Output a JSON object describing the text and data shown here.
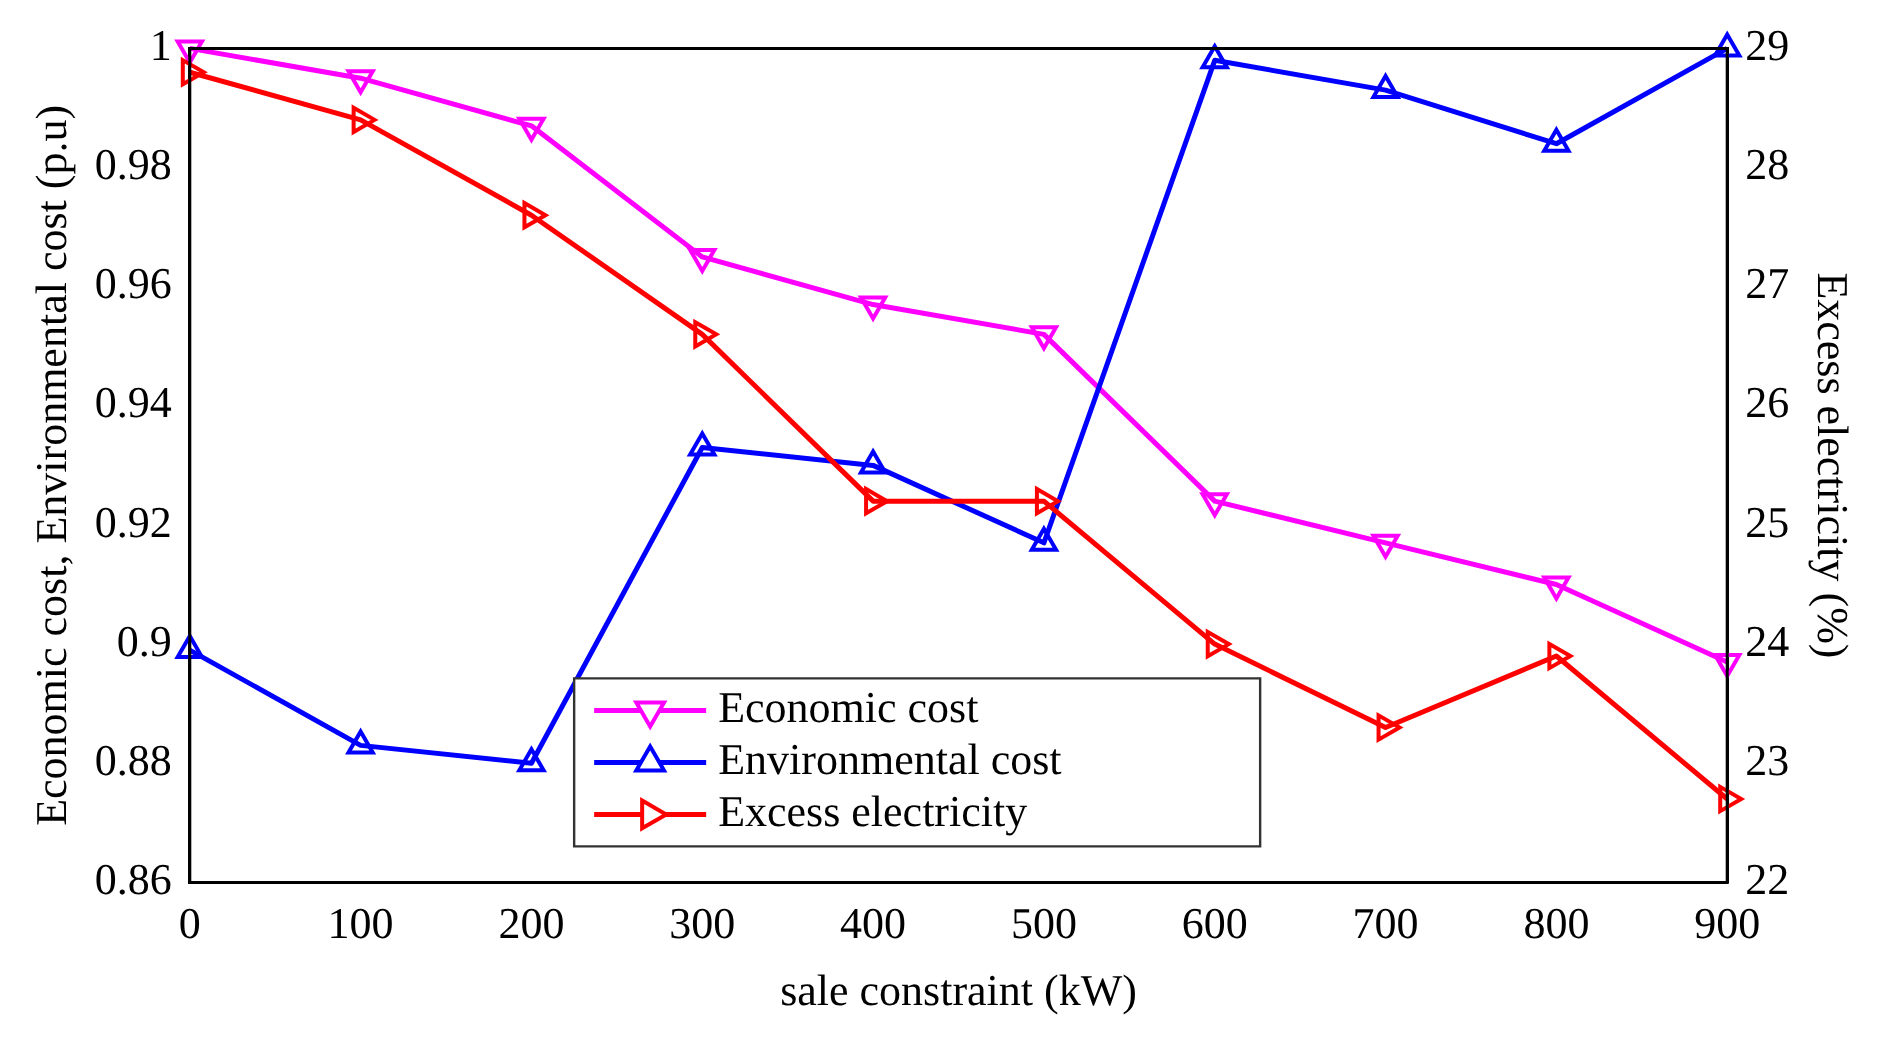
{
  "chart_data": {
    "type": "line",
    "xlabel": "sale constraint (kW)",
    "ylabel": "Economic cost, Environmental cost (p.u)",
    "y2label": "Excess electricity (%)",
    "x": [
      0,
      100,
      200,
      300,
      400,
      500,
      600,
      700,
      800,
      900
    ],
    "xlim": [
      0,
      900
    ],
    "xticks": [
      0,
      100,
      200,
      300,
      400,
      500,
      600,
      700,
      800,
      900
    ],
    "ylim": [
      0.86,
      1
    ],
    "yticks": [
      0.86,
      0.88,
      0.9,
      0.92,
      0.94,
      0.96,
      0.98,
      {
        "value": 1,
        "label": "1"
      }
    ],
    "y2lim": [
      22,
      29
    ],
    "y2ticks": [
      22,
      23,
      24,
      25,
      26,
      27,
      28,
      29
    ],
    "grid": false,
    "legend": "bottom",
    "marker": "triangle",
    "line_style": "solid",
    "series": [
      {
        "name": "Economic cost",
        "color": "#ff00ff",
        "values": [
          1.0,
          0.995,
          0.987,
          0.965,
          0.957,
          0.952,
          0.924,
          0.917,
          0.91,
          0.897
        ]
      },
      {
        "name": "Environmental cost",
        "color": "#0000ff",
        "values": [
          0.899,
          0.883,
          0.88,
          0.933,
          0.93,
          0.917,
          0.998,
          0.993,
          0.984,
          1.0
        ]
      },
      {
        "name": "Excess electricity",
        "color": "#ff0000",
        "axis": "y2",
        "values": [
          28.8,
          28.4,
          27.6,
          26.6,
          25.2,
          25.2,
          24.0,
          23.3,
          23.9,
          22.7
        ]
      }
    ]
  }
}
